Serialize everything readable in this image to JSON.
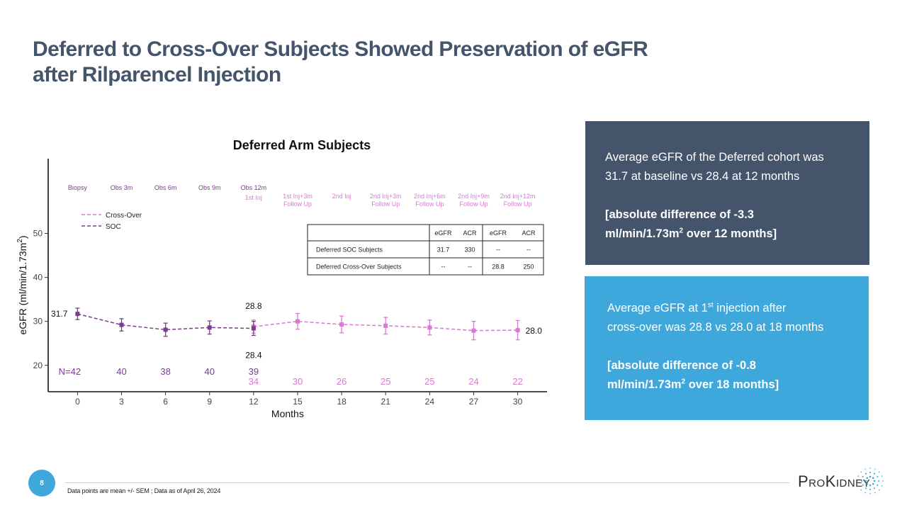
{
  "slide": {
    "title_line1": "Deferred to Cross-Over Subjects Showed Preservation of eGFR",
    "title_line2": "after Rilparencel Injection",
    "page_number": "8",
    "footnote": "Data points are mean +/- SEM ; Data as of April 26, 2024",
    "logo_text": "ProKidney",
    "colors": {
      "title": "#44546a",
      "dark_box": "#44546a",
      "blue_box": "#3ea8dc",
      "soc": "#7a3c8c",
      "cross_over": "#d57bd0"
    }
  },
  "box_dark": {
    "line1": "Average eGFR of the Deferred cohort was",
    "line2": "31.7 at baseline vs 28.4 at 12 months",
    "bold1": "[absolute difference of -3.3",
    "bold2a": "ml/min/1.73m",
    "bold2sup": "2",
    "bold2b": " over 12 months]"
  },
  "box_blue": {
    "line1a": "Average eGFR at 1",
    "line1sup": "st",
    "line1b": " injection after",
    "line2": "cross-over was 28.8 vs 28.0 at 18 months",
    "bold1": "[absolute difference of -0.8",
    "bold2a": "ml/min/1.73m",
    "bold2sup": "2",
    "bold2b": " over 18 months]"
  },
  "chart_data": {
    "type": "line",
    "title": "Deferred Arm Subjects",
    "xlabel": "Months",
    "ylabel": "eGFR (ml/min/1.73m",
    "ylabel_sup": "2",
    "ylabel_close": ")",
    "xlim": [
      -2,
      32
    ],
    "ylim": [
      14,
      67
    ],
    "xticks": [
      0,
      3,
      6,
      9,
      12,
      15,
      18,
      21,
      24,
      27,
      30
    ],
    "yticks": [
      20,
      30,
      40,
      50
    ],
    "legend": {
      "position": "top-left",
      "entries": [
        "Cross-Over",
        "SOC"
      ]
    },
    "series": [
      {
        "name": "SOC",
        "color": "#7a3c8c",
        "points": [
          {
            "x": 0,
            "y": 31.7,
            "lo": 30.4,
            "hi": 33.0
          },
          {
            "x": 3,
            "y": 29.2,
            "lo": 27.8,
            "hi": 30.6
          },
          {
            "x": 6,
            "y": 28.1,
            "lo": 26.6,
            "hi": 29.6
          },
          {
            "x": 9,
            "y": 28.6,
            "lo": 27.1,
            "hi": 30.1
          },
          {
            "x": 12,
            "y": 28.4,
            "lo": 26.8,
            "hi": 30.0
          }
        ]
      },
      {
        "name": "Cross-Over",
        "color": "#d57bd0",
        "points": [
          {
            "x": 12,
            "y": 28.8,
            "lo": 27.3,
            "hi": 30.3
          },
          {
            "x": 15,
            "y": 30.0,
            "lo": 28.2,
            "hi": 31.8
          },
          {
            "x": 18,
            "y": 29.3,
            "lo": 27.4,
            "hi": 31.2
          },
          {
            "x": 21,
            "y": 29.0,
            "lo": 27.1,
            "hi": 30.9
          },
          {
            "x": 24,
            "y": 28.6,
            "lo": 26.9,
            "hi": 30.3
          },
          {
            "x": 27,
            "y": 27.9,
            "lo": 25.8,
            "hi": 30.0
          },
          {
            "x": 30,
            "y": 28.0,
            "lo": 25.8,
            "hi": 30.2
          }
        ]
      }
    ],
    "value_labels": [
      {
        "text": "31.7",
        "x": 0,
        "y": 31.7,
        "pos": "left"
      },
      {
        "text": "28.8",
        "x": 12,
        "y": 28.8,
        "pos": "above"
      },
      {
        "text": "28.4",
        "x": 12,
        "y": 28.4,
        "pos": "below"
      },
      {
        "text": "28.0",
        "x": 30,
        "y": 28.0,
        "pos": "right"
      }
    ],
    "phase_labels": [
      {
        "x": 0,
        "lines": [
          "Biopsy"
        ],
        "series": "SOC"
      },
      {
        "x": 3,
        "lines": [
          "Obs 3m"
        ],
        "series": "SOC"
      },
      {
        "x": 6,
        "lines": [
          "Obs 6m"
        ],
        "series": "SOC"
      },
      {
        "x": 9,
        "lines": [
          "Obs 9m"
        ],
        "series": "SOC"
      },
      {
        "x": 12,
        "lines": [
          "Obs 12m"
        ],
        "series": "SOC"
      },
      {
        "x": 12,
        "lines": [
          "1st Inj"
        ],
        "series": "Cross-Over",
        "row": 1
      },
      {
        "x": 15,
        "lines": [
          "1st Inj+3m",
          "Follow Up"
        ],
        "series": "Cross-Over"
      },
      {
        "x": 18,
        "lines": [
          "2nd Inj"
        ],
        "series": "Cross-Over"
      },
      {
        "x": 21,
        "lines": [
          "2nd Inj+3m",
          "Follow Up"
        ],
        "series": "Cross-Over"
      },
      {
        "x": 24,
        "lines": [
          "2nd Inj+6m",
          "Follow Up"
        ],
        "series": "Cross-Over"
      },
      {
        "x": 27,
        "lines": [
          "2nd Inj+9m",
          "Follow Up"
        ],
        "series": "Cross-Over"
      },
      {
        "x": 30,
        "lines": [
          "2nd Inj+12m",
          "Follow Up"
        ],
        "series": "Cross-Over"
      }
    ],
    "n_counts": {
      "soc": {
        "prefix": "N=",
        "x": [
          0,
          3,
          6,
          9,
          12
        ],
        "n": [
          42,
          40,
          38,
          40,
          39
        ]
      },
      "cross_over": {
        "x": [
          12,
          15,
          18,
          21,
          24,
          27,
          30
        ],
        "n": [
          34,
          30,
          26,
          25,
          25,
          24,
          22
        ]
      }
    },
    "table": {
      "header": [
        "",
        "eGFR",
        "ACR",
        "eGFR",
        "ACR"
      ],
      "rows": [
        [
          "Deferred SOC Subjects",
          "31.7",
          "330",
          "--",
          "--"
        ],
        [
          "Deferred Cross-Over Subjects",
          "--",
          "--",
          "28.8",
          "250"
        ]
      ]
    }
  }
}
